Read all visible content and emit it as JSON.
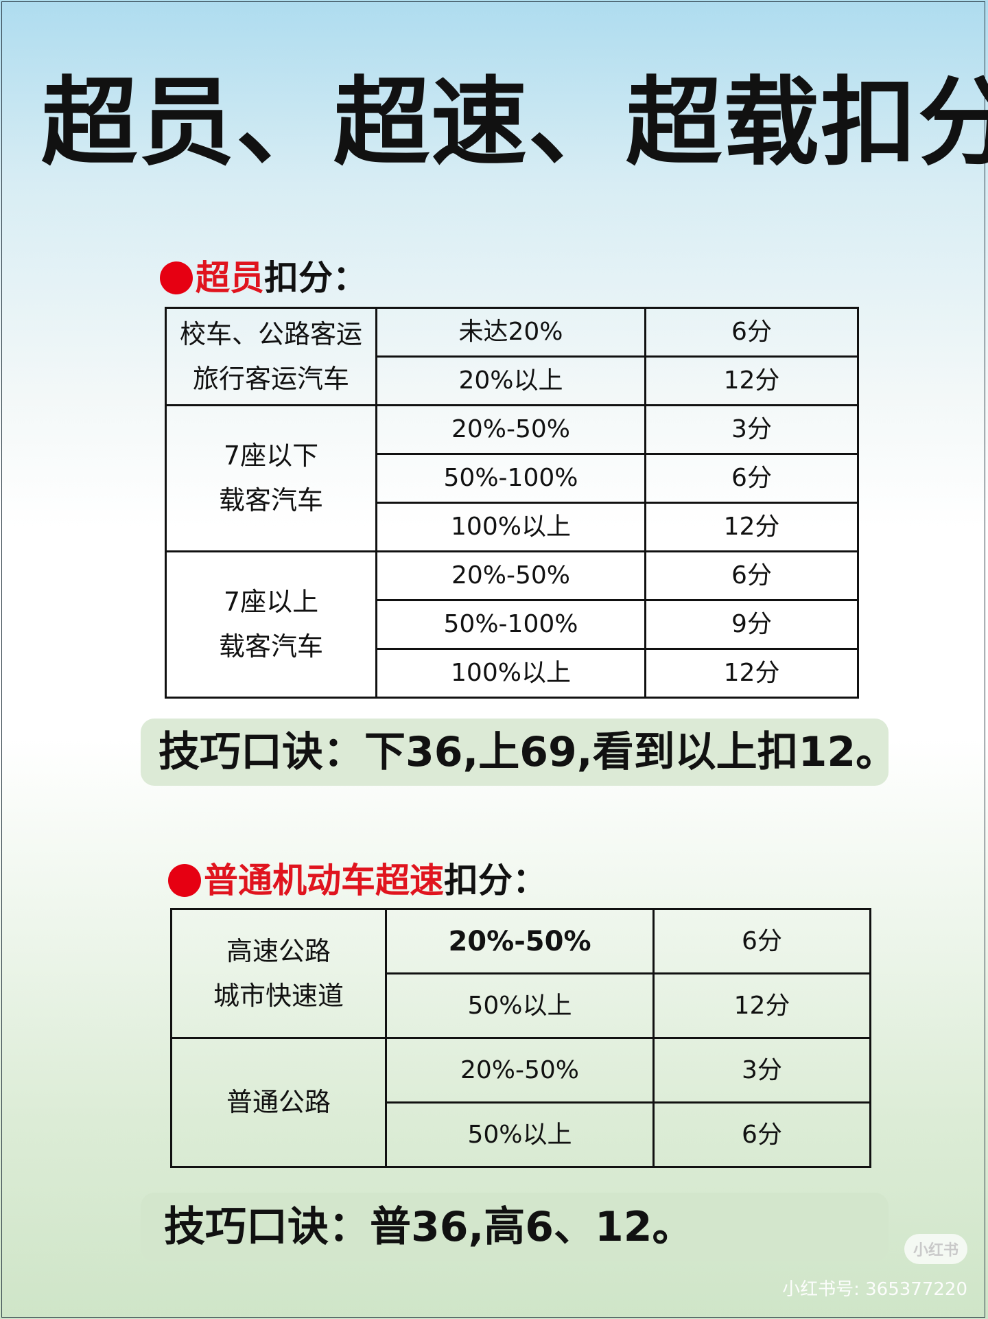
{
  "title": "超员、超速、超载扣分",
  "section1": {
    "heading_red": "超员",
    "heading_black": "扣分：",
    "groups": [
      {
        "category_lines": [
          "校车、公路客运",
          "旅行客运汽车"
        ],
        "rows": [
          {
            "range": "未达20%",
            "points": "6分"
          },
          {
            "range": "20%以上",
            "points": "12分"
          }
        ]
      },
      {
        "category_lines": [
          "7座以下",
          "载客汽车"
        ],
        "rows": [
          {
            "range": "20%-50%",
            "points": "3分"
          },
          {
            "range": "50%-100%",
            "points": "6分"
          },
          {
            "range": "100%以上",
            "points": "12分"
          }
        ]
      },
      {
        "category_lines": [
          "7座以上",
          "载客汽车"
        ],
        "rows": [
          {
            "range": "20%-50%",
            "points": "6分"
          },
          {
            "range": "50%-100%",
            "points": "9分"
          },
          {
            "range": "100%以上",
            "points": "12分"
          }
        ]
      }
    ],
    "tip": "技巧口诀：下36,上69,看到以上扣12。"
  },
  "section2": {
    "heading_red": "普通机动车超速",
    "heading_black": "扣分：",
    "groups": [
      {
        "category_lines": [
          "高速公路",
          "城市快速道"
        ],
        "rows": [
          {
            "range": "20%-50%",
            "points": "6分"
          },
          {
            "range": "50%以上",
            "points": "12分"
          }
        ]
      },
      {
        "category_lines": [
          "普通公路"
        ],
        "rows": [
          {
            "range": "20%-50%",
            "points": "3分"
          },
          {
            "range": "50%以上",
            "points": "6分"
          }
        ]
      }
    ],
    "tip": "技巧口诀：普36,高6、12。"
  },
  "watermark": {
    "badge": "小红书",
    "id_text": "小红书号: 365377220"
  }
}
